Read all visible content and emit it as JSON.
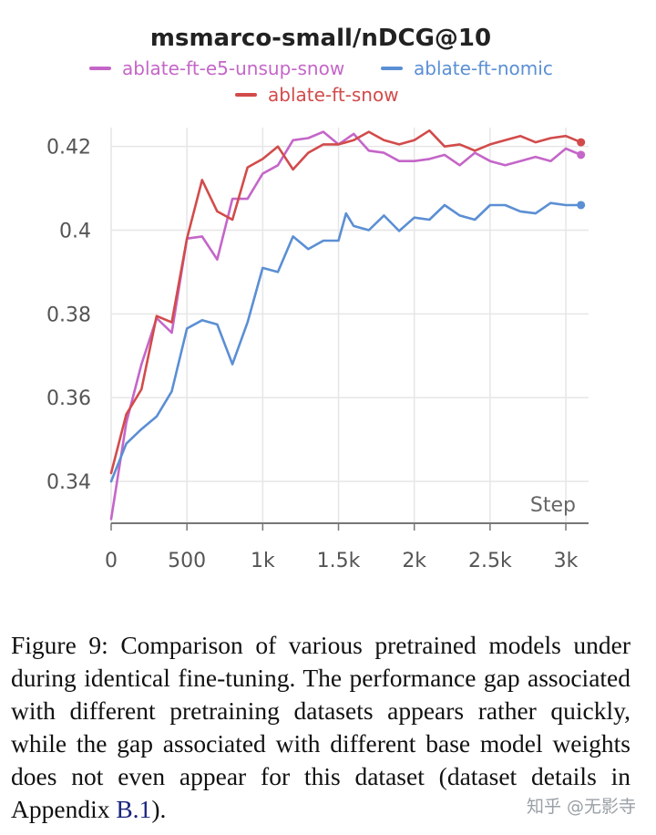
{
  "chart_data": {
    "type": "line",
    "title": "msmarco-small/nDCG@10",
    "xlabel": "Step",
    "ylabel": "",
    "xlim": [
      0,
      3150
    ],
    "ylim": [
      0.33,
      0.4245
    ],
    "xticks": [
      0,
      500,
      1000,
      1500,
      2000,
      2500,
      3000
    ],
    "xtick_labels": [
      "0",
      "500",
      "1k",
      "1.5k",
      "2k",
      "2.5k",
      "3k"
    ],
    "yticks": [
      0.34,
      0.36,
      0.38,
      0.4,
      0.42
    ],
    "ytick_labels": [
      "0.34",
      "0.36",
      "0.38",
      "0.4",
      "0.42"
    ],
    "grid": true,
    "legend_position": "top",
    "series": [
      {
        "name": "ablate-ft-e5-unsup-snow",
        "color": "#c466c8",
        "x": [
          0,
          100,
          200,
          300,
          400,
          500,
          600,
          700,
          800,
          900,
          1000,
          1100,
          1200,
          1300,
          1400,
          1500,
          1600,
          1700,
          1800,
          1900,
          2000,
          2100,
          2200,
          2300,
          2400,
          2500,
          2600,
          2700,
          2800,
          2900,
          3000,
          3100
        ],
        "y": [
          0.331,
          0.354,
          0.368,
          0.379,
          0.3755,
          0.398,
          0.3985,
          0.393,
          0.4075,
          0.4075,
          0.4135,
          0.4155,
          0.4215,
          0.422,
          0.4235,
          0.4205,
          0.423,
          0.419,
          0.4185,
          0.4165,
          0.4165,
          0.417,
          0.418,
          0.4155,
          0.4185,
          0.4165,
          0.4155,
          0.4165,
          0.4175,
          0.4165,
          0.4195,
          0.418
        ]
      },
      {
        "name": "ablate-ft-nomic",
        "color": "#5b8fd4",
        "x": [
          0,
          100,
          200,
          300,
          400,
          500,
          600,
          700,
          800,
          900,
          1000,
          1100,
          1200,
          1300,
          1400,
          1500,
          1550,
          1600,
          1700,
          1800,
          1900,
          2000,
          2100,
          2200,
          2300,
          2400,
          2500,
          2600,
          2700,
          2800,
          2900,
          3000,
          3100
        ],
        "y": [
          0.34,
          0.349,
          0.3525,
          0.3555,
          0.3615,
          0.3765,
          0.3785,
          0.3775,
          0.368,
          0.378,
          0.391,
          0.39,
          0.3985,
          0.3955,
          0.3975,
          0.3975,
          0.404,
          0.401,
          0.4,
          0.4035,
          0.3998,
          0.403,
          0.4025,
          0.406,
          0.4035,
          0.4025,
          0.406,
          0.406,
          0.4045,
          0.404,
          0.4065,
          0.406,
          0.406
        ]
      },
      {
        "name": "ablate-ft-snow",
        "color": "#d24b4b",
        "x": [
          0,
          100,
          200,
          300,
          400,
          500,
          600,
          700,
          800,
          900,
          1000,
          1100,
          1200,
          1300,
          1400,
          1500,
          1600,
          1700,
          1800,
          1900,
          2000,
          2100,
          2200,
          2300,
          2400,
          2500,
          2600,
          2700,
          2800,
          2900,
          3000,
          3100
        ],
        "y": [
          0.342,
          0.356,
          0.362,
          0.3795,
          0.378,
          0.398,
          0.412,
          0.4045,
          0.4025,
          0.415,
          0.417,
          0.42,
          0.4145,
          0.4185,
          0.4205,
          0.4205,
          0.4215,
          0.4235,
          0.4215,
          0.4205,
          0.4215,
          0.4238,
          0.42,
          0.4205,
          0.419,
          0.4205,
          0.4215,
          0.4225,
          0.421,
          0.422,
          0.4225,
          0.421
        ]
      }
    ]
  },
  "caption": {
    "text": "Figure 9: Comparison of various pretrained models under during identical fine-tuning. The performance gap associated with different pretraining datasets appears rather quickly, while the gap associated with different base model weights does not even appear for this dataset (dataset details in Appendix ",
    "ref": "B.1",
    "tail": ")."
  },
  "watermark": "知乎 @无影寺"
}
